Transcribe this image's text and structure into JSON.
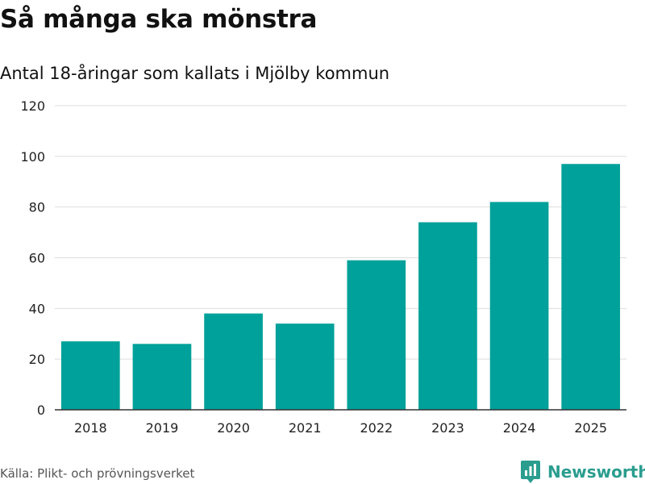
{
  "title": "Så många ska mönstra",
  "subtitle": "Antal 18-åringar som kallats i Mjölby kommun",
  "source": "Källa: Plikt- och prövningsverket",
  "brand": {
    "name": "Newsworthy",
    "icon": "bar-chart-pin-icon",
    "color": "#2a9d8f"
  },
  "colors": {
    "bar": "#00a19a",
    "grid": "#dddddd",
    "axis": "#333333",
    "tick_text": "#222222"
  },
  "chart_data": {
    "type": "bar",
    "title": "Så många ska mönstra",
    "subtitle": "Antal 18-åringar som kallats i Mjölby kommun",
    "categories": [
      "2018",
      "2019",
      "2020",
      "2021",
      "2022",
      "2023",
      "2024",
      "2025"
    ],
    "values": [
      27,
      26,
      38,
      34,
      59,
      74,
      82,
      97
    ],
    "xlabel": "",
    "ylabel": "",
    "ylim": [
      0,
      120
    ],
    "yticks": [
      0,
      20,
      40,
      60,
      80,
      100,
      120
    ],
    "grid": true,
    "legend": "none"
  }
}
